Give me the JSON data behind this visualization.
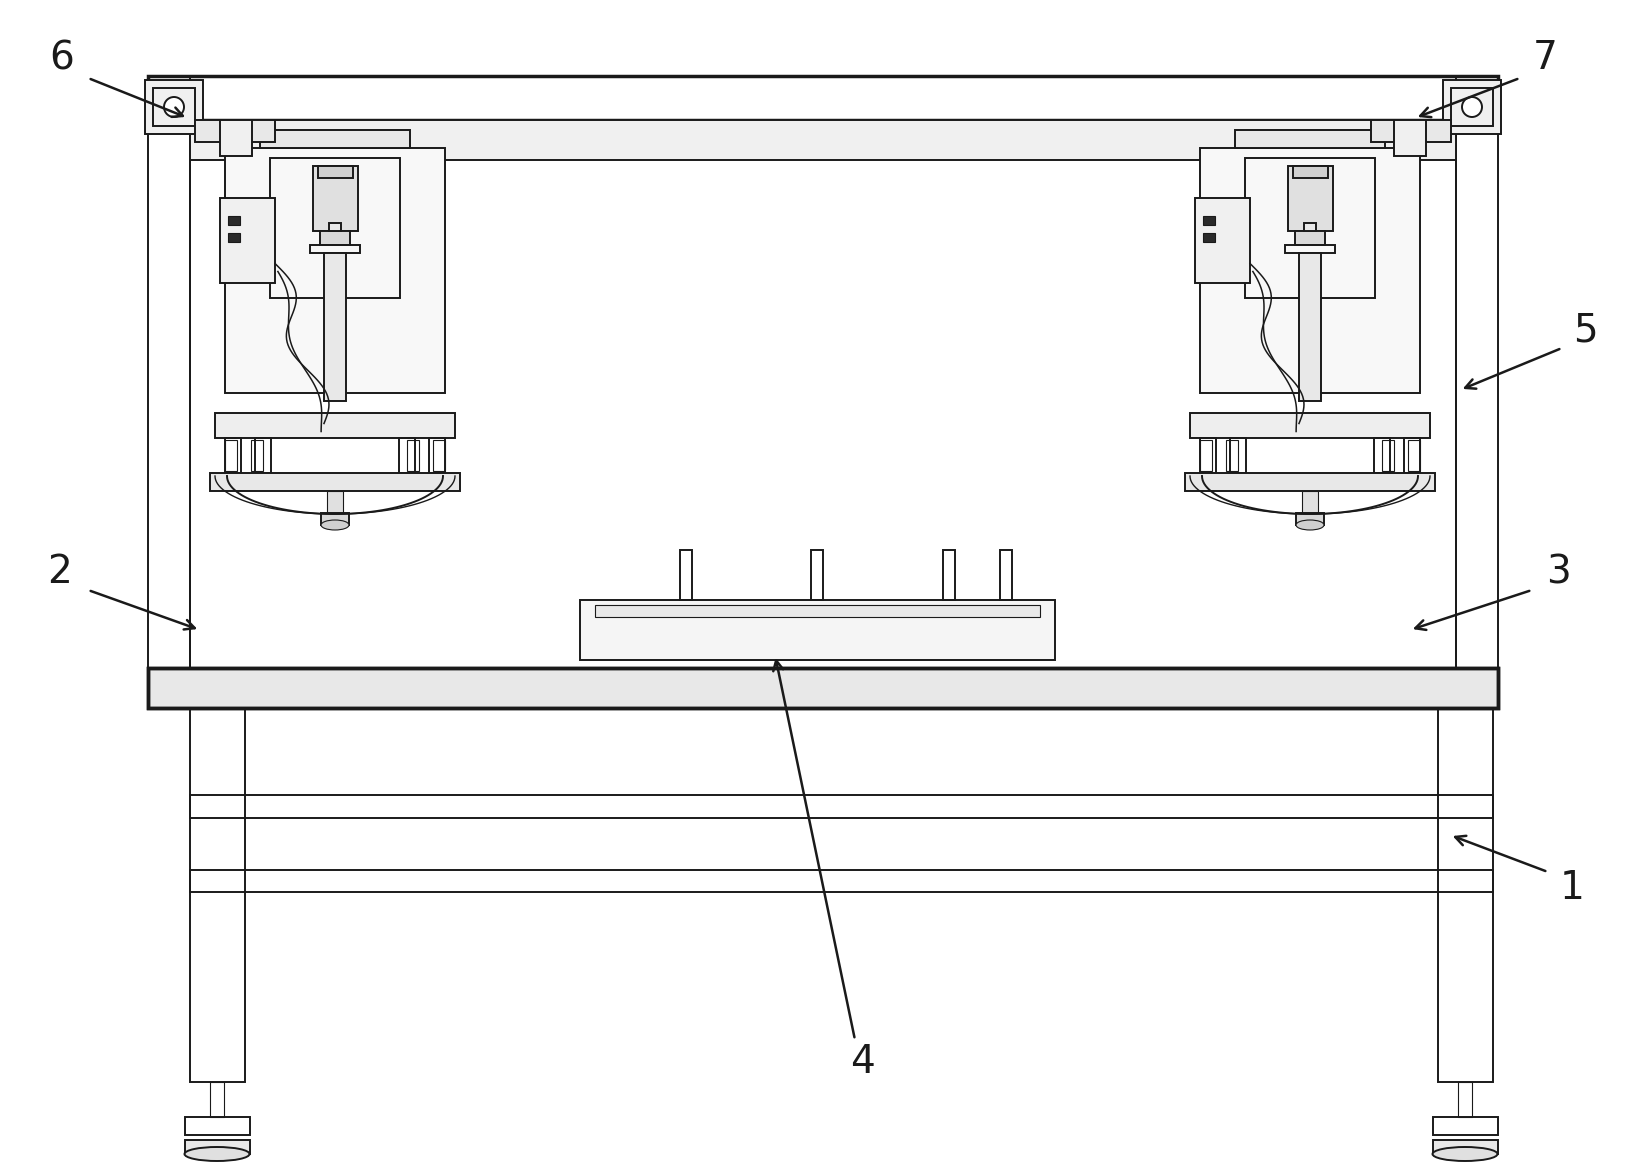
{
  "bg_color": "#ffffff",
  "lc": "#1a1a1a",
  "lw": 1.4,
  "tlw": 0.8,
  "thw": 2.5
}
